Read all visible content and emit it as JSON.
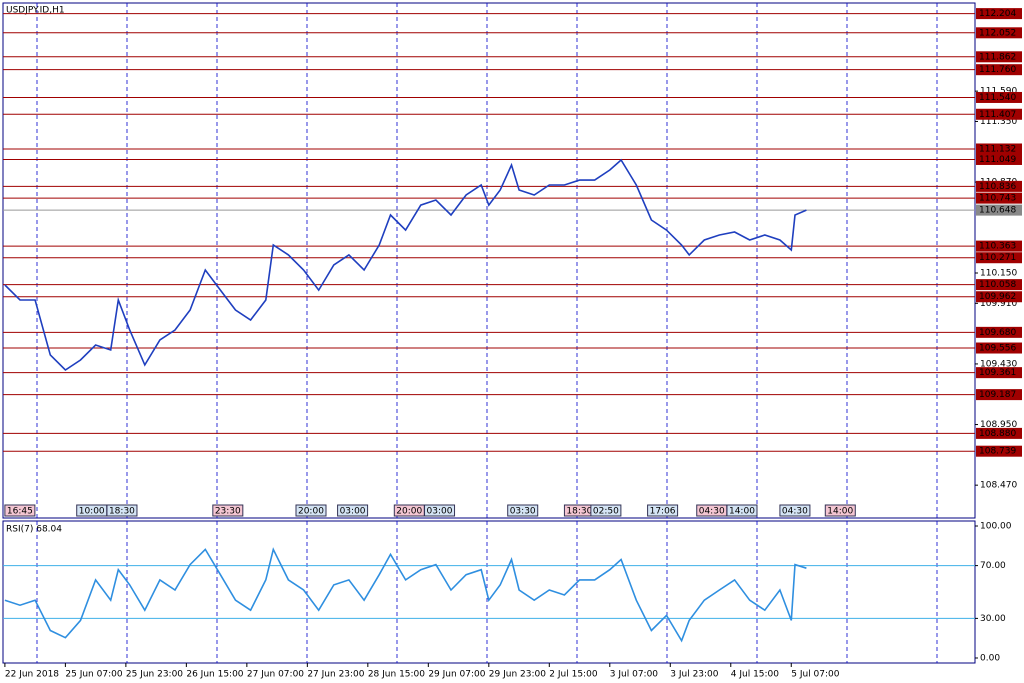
{
  "chart_data": [
    {
      "type": "line",
      "title": "USDJPY.ID,H1",
      "color": "#1f3fbf",
      "x": [
        0,
        4,
        8,
        12,
        16,
        20,
        24,
        28,
        30,
        33,
        37,
        41,
        45,
        49,
        53,
        57,
        61,
        65,
        69,
        71,
        75,
        79,
        83,
        87,
        91,
        95,
        99,
        102,
        106,
        110,
        114,
        118,
        122,
        126,
        128,
        131,
        134,
        136,
        140,
        144,
        148,
        152,
        156,
        160,
        163,
        167,
        171,
        175,
        179,
        181,
        185,
        189,
        193,
        197,
        201,
        205,
        208,
        209,
        212
      ],
      "values": [
        110.055,
        109.936,
        109.936,
        109.501,
        109.382,
        109.461,
        109.58,
        109.54,
        109.936,
        109.699,
        109.422,
        109.62,
        109.699,
        109.857,
        110.174,
        110.015,
        109.857,
        109.778,
        109.936,
        110.372,
        110.293,
        110.174,
        110.015,
        110.213,
        110.293,
        110.174,
        110.372,
        110.609,
        110.49,
        110.688,
        110.728,
        110.609,
        110.768,
        110.847,
        110.688,
        110.807,
        111.005,
        110.807,
        110.768,
        110.847,
        110.847,
        110.886,
        110.886,
        110.966,
        111.045,
        110.847,
        110.57,
        110.49,
        110.372,
        110.293,
        110.411,
        110.451,
        110.475,
        110.411,
        110.451,
        110.411,
        110.332,
        110.609,
        110.648
      ],
      "xlim": [
        -0.5,
        256.6
      ],
      "ylim": [
        108.21,
        112.288
      ],
      "yticks": [
        {
          "value": 111.59,
          "label": "111.590"
        },
        {
          "value": 111.35,
          "label": "111.350"
        },
        {
          "value": 110.87,
          "label": "110.870"
        },
        {
          "value": 110.15,
          "label": "110.150"
        },
        {
          "value": 109.91,
          "label": "109.910"
        },
        {
          "value": 109.43,
          "label": "109.430"
        },
        {
          "value": 108.95,
          "label": "108.950"
        },
        {
          "value": 108.47,
          "label": "108.470"
        }
      ],
      "levels": [
        112.204,
        112.052,
        111.862,
        111.76,
        111.54,
        111.407,
        111.132,
        111.049,
        110.836,
        110.743,
        110.363,
        110.271,
        110.058,
        109.962,
        109.68,
        109.556,
        109.361,
        109.187,
        108.88,
        108.739
      ],
      "level_labels": [
        "112.204",
        "112.052",
        "111.862",
        "111.760",
        "111.540",
        "111.407",
        "111.132",
        "111.049",
        "110.836",
        "110.743",
        "110.363",
        "110.271",
        "110.058",
        "109.962",
        "109.680",
        "109.556",
        "109.361",
        "109.187",
        "108.880",
        "108.739"
      ],
      "level_color": "#a00000",
      "last_price": 110.648,
      "last_price_label": "110.648",
      "time_markers": [
        {
          "x": 0,
          "label": "16:45"
        },
        {
          "x": 19,
          "label": "10:00"
        },
        {
          "x": 27,
          "label": "18:30"
        },
        {
          "x": 55,
          "label": "23:30"
        },
        {
          "x": 77,
          "label": "20:00"
        },
        {
          "x": 88,
          "label": "03:00"
        },
        {
          "x": 103,
          "label": "20:00"
        },
        {
          "x": 111,
          "label": "03:00"
        },
        {
          "x": 133,
          "label": "03:30"
        },
        {
          "x": 148,
          "label": "18:30"
        },
        {
          "x": 155,
          "label": "02:50"
        },
        {
          "x": 170,
          "label": "17:06"
        },
        {
          "x": 183,
          "label": "04:30"
        },
        {
          "x": 191,
          "label": "14:00"
        },
        {
          "x": 205,
          "label": "04:30"
        },
        {
          "x": 217,
          "label": "14:00"
        }
      ],
      "xticks": [
        {
          "value": 0,
          "label": "22 Jun 2018"
        },
        {
          "value": 16,
          "label": "25 Jun 07:00"
        },
        {
          "value": 32,
          "label": "25 Jun 23:00"
        },
        {
          "value": 48,
          "label": "26 Jun 15:00"
        },
        {
          "value": 64,
          "label": "27 Jun 07:00"
        },
        {
          "value": 80,
          "label": "27 Jun 23:00"
        },
        {
          "value": 96,
          "label": "28 Jun 15:00"
        },
        {
          "value": 112,
          "label": "29 Jun 07:00"
        },
        {
          "value": 128,
          "label": "29 Jun 23:00"
        },
        {
          "value": 144,
          "label": "2 Jul 15:00"
        },
        {
          "value": 160,
          "label": "3 Jul 07:00"
        },
        {
          "value": 176,
          "label": "3 Jul 23:00"
        },
        {
          "value": 192,
          "label": "4 Jul 15:00"
        },
        {
          "value": 208,
          "label": "5 Jul 07:00"
        }
      ]
    },
    {
      "type": "line",
      "title": "RSI(7) 68.04",
      "color": "#2f8fe0",
      "x": [
        0,
        4,
        8,
        12,
        16,
        20,
        24,
        28,
        30,
        33,
        37,
        41,
        45,
        49,
        53,
        57,
        61,
        65,
        69,
        71,
        75,
        79,
        83,
        87,
        91,
        95,
        99,
        102,
        106,
        110,
        114,
        118,
        122,
        126,
        128,
        131,
        134,
        136,
        140,
        144,
        148,
        152,
        156,
        160,
        163,
        167,
        171,
        175,
        179,
        181,
        185,
        189,
        193,
        197,
        201,
        205,
        208,
        209,
        212
      ],
      "values": [
        43.8,
        40,
        43.8,
        20.8,
        15.4,
        28.5,
        59.2,
        43.8,
        66.9,
        55.4,
        36.2,
        59.2,
        51.5,
        70.8,
        82.3,
        63.1,
        43.8,
        36.2,
        59.2,
        82.3,
        59.2,
        51.5,
        36.2,
        55.4,
        59.2,
        43.8,
        63.1,
        78.5,
        59.2,
        66.9,
        70.8,
        51.5,
        63.1,
        66.9,
        43.8,
        55.4,
        74.6,
        51.5,
        43.8,
        51.5,
        47.7,
        59.2,
        59.2,
        66.9,
        74.6,
        43.8,
        20.8,
        32.3,
        13.1,
        28.5,
        43.8,
        51.5,
        59.2,
        43.8,
        36.2,
        51.5,
        28.5,
        70.8,
        68.04
      ],
      "xlim": [
        -0.5,
        256.6
      ],
      "ylim": [
        -3.8,
        103.8
      ],
      "yticks": [
        {
          "value": 100,
          "label": "100.00"
        },
        {
          "value": 70,
          "label": "70.00"
        },
        {
          "value": 30,
          "label": "30.00"
        },
        {
          "value": 0,
          "label": "0.00"
        }
      ],
      "levels": [
        70,
        30
      ],
      "level_color": "#3fb0e8"
    }
  ]
}
